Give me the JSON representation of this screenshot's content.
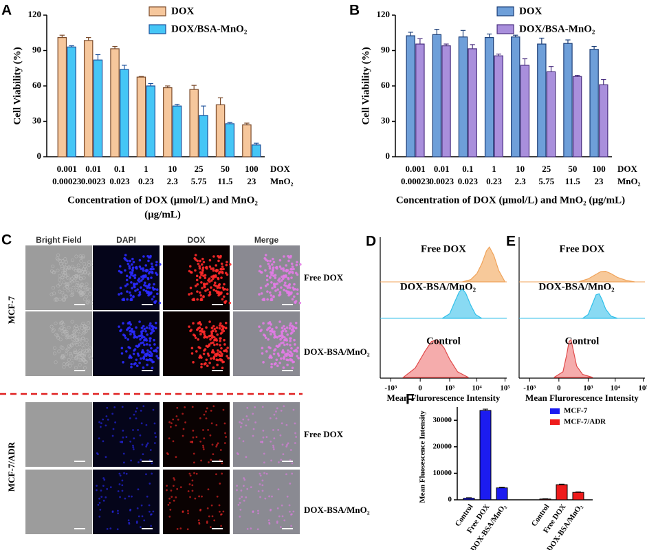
{
  "chart_data": [
    {
      "panel": "A",
      "type": "bar",
      "ylabel": "Cell Viability (%)",
      "xlabel": [
        "Concentration of DOX (μmol/L) and MnO₂",
        "(μg/mL)"
      ],
      "x_row_labels": [
        "DOX",
        "MnO₂"
      ],
      "categories": [
        [
          "0.001",
          "0.00023"
        ],
        [
          "0.01",
          "0.0023"
        ],
        [
          "0.1",
          "0.023"
        ],
        [
          "1",
          "0.23"
        ],
        [
          "10",
          "2.3"
        ],
        [
          "25",
          "5.75"
        ],
        [
          "50",
          "11.5"
        ],
        [
          "100",
          "23"
        ]
      ],
      "series": [
        {
          "name": "DOX",
          "color": "#f6c79c",
          "edgecolor": "#7a4a2a",
          "values": [
            101,
            98.5,
            91.5,
            67.5,
            58.5,
            57,
            44,
            27
          ],
          "errors": [
            2,
            2.5,
            2,
            0.5,
            1.5,
            3.5,
            6,
            1.5
          ]
        },
        {
          "name": "DOX/BSA-MnO₂",
          "color": "#45c6f6",
          "edgecolor": "#1a4f9a",
          "values": [
            93,
            82,
            74,
            60,
            43,
            35,
            28,
            10
          ],
          "errors": [
            1,
            4.5,
            3.5,
            2,
            1.5,
            8,
            1,
            1.5
          ]
        }
      ],
      "ylim": [
        0,
        120
      ],
      "yticks": [
        0,
        30,
        60,
        90,
        120
      ],
      "legend": "upper right"
    },
    {
      "panel": "B",
      "type": "bar",
      "ylabel": "Cell Viability (%)",
      "xlabel": "Concentration of DOX (μmol/L) and MnO₂ (μg/mL)",
      "x_row_labels": [
        "DOX",
        "MnO₂"
      ],
      "categories": [
        [
          "0.001",
          "0.00023"
        ],
        [
          "0.01",
          "0.0023"
        ],
        [
          "0.1",
          "0.023"
        ],
        [
          "1",
          "0.23"
        ],
        [
          "10",
          "2.3"
        ],
        [
          "25",
          "5.75"
        ],
        [
          "50",
          "11.5"
        ],
        [
          "100",
          "23"
        ]
      ],
      "series": [
        {
          "name": "DOX",
          "color": "#6e9fd9",
          "edgecolor": "#1d3f78",
          "values": [
            102.5,
            103.5,
            101.5,
            101,
            101.5,
            95.5,
            96,
            91
          ],
          "errors": [
            3,
            4.5,
            5.5,
            3,
            1.5,
            5,
            3,
            2.5
          ]
        },
        {
          "name": "DOX/BSA-MnO₂",
          "color": "#a98fdc",
          "edgecolor": "#4a2f80",
          "values": [
            95.5,
            94,
            91.5,
            85.5,
            77.5,
            72,
            68,
            61
          ],
          "errors": [
            4.5,
            1.5,
            3.5,
            1.5,
            5.5,
            4.5,
            1,
            4.5
          ]
        }
      ],
      "ylim": [
        0,
        120
      ],
      "yticks": [
        0,
        30,
        60,
        90,
        120
      ],
      "legend": "upper right"
    },
    {
      "panel": "D",
      "type": "density",
      "xscale": "symlog",
      "xlabel": "Mean Flurorescence Intensity",
      "xlim": [
        -2500,
        115000
      ],
      "xticks": [
        {
          "value": -1000,
          "label": "-10³"
        },
        0,
        {
          "value": 1000,
          "label": "10³"
        },
        {
          "value": 10000,
          "label": "10⁴"
        },
        {
          "value": 100000,
          "label": "10⁵"
        }
      ],
      "series": [
        {
          "name": "Free DOX",
          "color": "#f6c38f",
          "x": [
            3000,
            6000,
            10000,
            15000,
            22000,
            28000,
            40000,
            60000,
            100000
          ],
          "values": [
            0,
            6,
            22,
            48,
            82,
            92,
            70,
            30,
            0
          ]
        },
        {
          "name": "DOX-BSA/MnO₂",
          "color": "#7cd6f2",
          "x": [
            500,
            1000,
            1600,
            2300,
            3000,
            4000,
            6000,
            9000,
            15000
          ],
          "values": [
            0,
            12,
            45,
            70,
            78,
            66,
            35,
            10,
            0
          ]
        },
        {
          "name": "Control",
          "color": "#f4a3a3",
          "x": [
            -300,
            -50,
            50,
            150,
            300,
            600,
            1000,
            2000,
            5000
          ],
          "values": [
            0,
            25,
            70,
            95,
            100,
            78,
            48,
            15,
            0
          ]
        }
      ]
    },
    {
      "panel": "E",
      "type": "density",
      "xscale": "symlog",
      "xlabel": "Mean Flurorescence Intensity",
      "xlim": [
        -2500,
        115000
      ],
      "xticks": [
        {
          "value": -1000,
          "label": "-10³"
        },
        0,
        {
          "value": 1000,
          "label": "10³"
        },
        {
          "value": 10000,
          "label": "10⁴"
        },
        {
          "value": 100000,
          "label": "10⁵"
        }
      ],
      "series": [
        {
          "name": "Free DOX",
          "color": "#f6c38f",
          "x": [
            400,
            1000,
            2000,
            3000,
            4500,
            7000,
            12000,
            25000,
            50000
          ],
          "values": [
            0,
            8,
            20,
            27,
            28,
            22,
            12,
            4,
            0
          ]
        },
        {
          "name": "DOX-BSA/MnO₂",
          "color": "#7cd6f2",
          "x": [
            600,
            1000,
            1500,
            2000,
            2600,
            3300,
            4500,
            7000,
            12000
          ],
          "values": [
            0,
            10,
            40,
            62,
            65,
            50,
            25,
            6,
            0
          ]
        },
        {
          "name": "Control",
          "color": "#f4a3a3",
          "x": [
            -50,
            40,
            90,
            130,
            170,
            230,
            330,
            600,
            1500
          ],
          "values": [
            0,
            15,
            60,
            95,
            100,
            70,
            30,
            8,
            0
          ]
        }
      ]
    },
    {
      "panel": "F",
      "type": "grouped_bar",
      "ylabel": "Mean Fluosescence Intensity",
      "categories": [
        "Control",
        "Free DOX",
        "DOX-BSA/MnO₂"
      ],
      "series": [
        {
          "name": "MCF-7",
          "color": "#1c1cf0",
          "values": [
            600,
            33700,
            4500
          ],
          "errors": [
            200,
            500,
            300
          ]
        },
        {
          "name": "MCF-7/ADR",
          "color": "#ee1c1c",
          "values": [
            300,
            5700,
            2800
          ],
          "errors": [
            100,
            200,
            200
          ]
        }
      ],
      "ylim": [
        0,
        35000
      ],
      "yticks": [
        0,
        10000,
        20000,
        30000
      ],
      "legend": "upper right"
    }
  ],
  "microscopy": {
    "panel": "C",
    "columns": [
      "Bright Field",
      "DAPI",
      "DOX",
      "Merge"
    ],
    "rows": [
      {
        "name": "MCF-7",
        "conditions": [
          "Free DOX",
          "DOX-BSA/MnO₂"
        ]
      },
      {
        "name": "MCF-7/ADR",
        "conditions": [
          "Free DOX",
          "DOX-BSA/MnO₂"
        ]
      }
    ]
  }
}
